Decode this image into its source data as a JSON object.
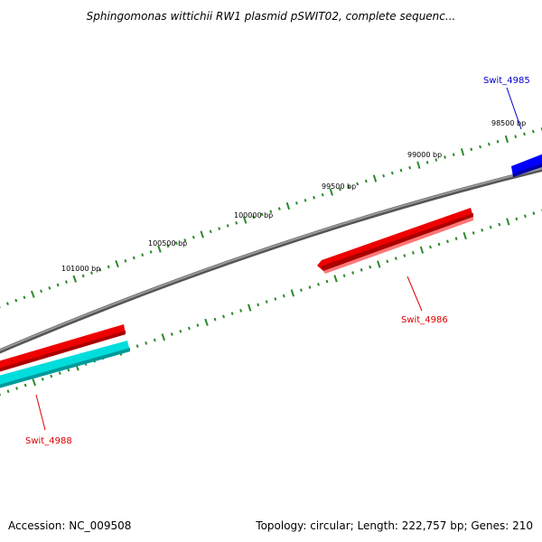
{
  "title": "Sphingomonas wittichii RW1 plasmid pSWIT02, complete sequenc...",
  "footer": {
    "accession": "Accession: NC_009508",
    "summary": "Topology: circular; Length: 222,757 bp; Genes: 210"
  },
  "tick_labels": [
    "98500 bp",
    "99000 bp",
    "99500 bp",
    "100000 bp",
    "100500 bp",
    "101000 bp"
  ],
  "genes": [
    {
      "name": "Swit_4985",
      "color": "#0000cc"
    },
    {
      "name": "Swit_4986",
      "color": "#dd0000"
    },
    {
      "name": "Swit_4988",
      "color": "#dd0000"
    }
  ],
  "colors": {
    "backbone": "#7a7a7a",
    "ticks": "#2a8a2a",
    "forward_gene": "#0000ff",
    "reverse_gene": "#ff0000",
    "cyan_feature": "#00cccc",
    "text": "#000000"
  }
}
